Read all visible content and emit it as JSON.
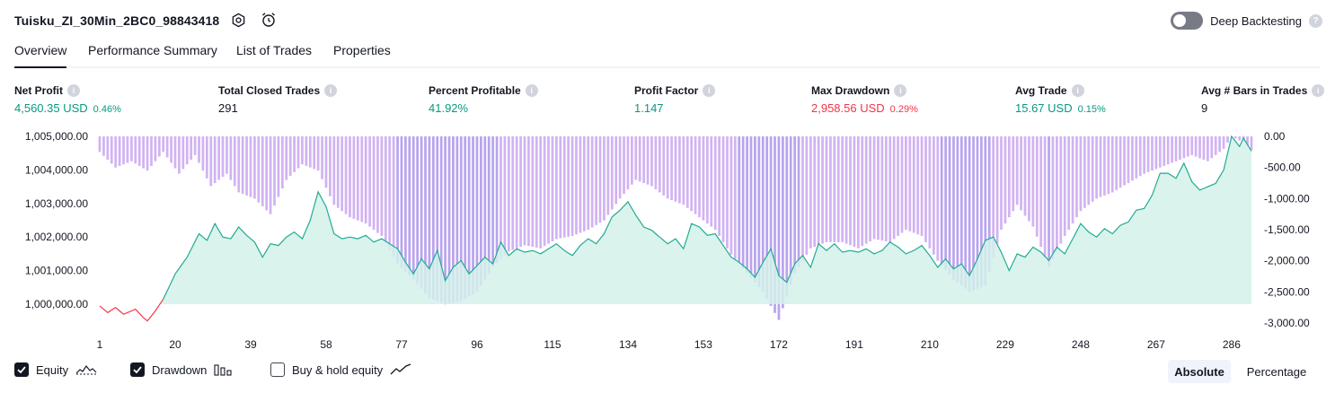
{
  "header": {
    "title": "Tuisku_ZI_30Min_2BC0_98843418",
    "settings_icon": "gear-icon",
    "alert_icon": "alarm-clock-icon",
    "deep_backtesting_label": "Deep Backtesting",
    "deep_backtesting_enabled": false,
    "help_icon": "question-icon"
  },
  "tabs": [
    {
      "label": "Overview",
      "active": true
    },
    {
      "label": "Performance Summary",
      "active": false
    },
    {
      "label": "List of Trades",
      "active": false
    },
    {
      "label": "Properties",
      "active": false
    }
  ],
  "metrics": [
    {
      "label": "Net Profit",
      "value": "4,560.35 USD",
      "pct": "0.46%",
      "tone": "pos"
    },
    {
      "label": "Total Closed Trades",
      "value": "291",
      "pct": "",
      "tone": "neutral"
    },
    {
      "label": "Percent Profitable",
      "value": "41.92%",
      "pct": "",
      "tone": "pos"
    },
    {
      "label": "Profit Factor",
      "value": "1.147",
      "pct": "",
      "tone": "pos"
    },
    {
      "label": "Max Drawdown",
      "value": "2,958.56 USD",
      "pct": "0.29%",
      "tone": "neg"
    },
    {
      "label": "Avg Trade",
      "value": "15.67 USD",
      "pct": "0.15%",
      "tone": "pos"
    },
    {
      "label": "Avg # Bars in Trades",
      "value": "9",
      "pct": "",
      "tone": "neutral"
    }
  ],
  "chart_data": {
    "type": "line",
    "left_axis_ticks": [
      "1,005,000.00",
      "1,004,000.00",
      "1,003,000.00",
      "1,002,000.00",
      "1,001,000.00",
      "1,000,000.00"
    ],
    "left_ylim": [
      1000000,
      1005000
    ],
    "right_axis_ticks": [
      "0.00",
      "-500.00",
      "-1,000.00",
      "-1,500.00",
      "-2,000.00",
      "-2,500.00",
      "-3,000.00"
    ],
    "right_ylim": [
      -3000,
      0
    ],
    "x_ticks": [
      "1",
      "20",
      "39",
      "58",
      "77",
      "96",
      "115",
      "134",
      "153",
      "172",
      "191",
      "210",
      "229",
      "248",
      "267",
      "286"
    ],
    "trade_count": 291,
    "equity_baseline": 1000000,
    "equity_anchors": [
      [
        1,
        999950
      ],
      [
        3,
        999750
      ],
      [
        5,
        999900
      ],
      [
        7,
        999700
      ],
      [
        10,
        999850
      ],
      [
        12,
        999600
      ],
      [
        13,
        999500
      ],
      [
        15,
        999800
      ],
      [
        17,
        1000150
      ],
      [
        20,
        1000900
      ],
      [
        23,
        1001400
      ],
      [
        26,
        1002100
      ],
      [
        28,
        1001900
      ],
      [
        30,
        1002400
      ],
      [
        32,
        1002000
      ],
      [
        34,
        1001950
      ],
      [
        36,
        1002300
      ],
      [
        38,
        1002050
      ],
      [
        40,
        1001850
      ],
      [
        42,
        1001400
      ],
      [
        44,
        1001800
      ],
      [
        46,
        1001750
      ],
      [
        48,
        1002000
      ],
      [
        50,
        1002150
      ],
      [
        52,
        1001950
      ],
      [
        54,
        1002500
      ],
      [
        56,
        1003350
      ],
      [
        58,
        1002900
      ],
      [
        60,
        1002100
      ],
      [
        62,
        1001950
      ],
      [
        64,
        1002000
      ],
      [
        66,
        1001950
      ],
      [
        68,
        1002050
      ],
      [
        70,
        1001850
      ],
      [
        72,
        1001950
      ],
      [
        74,
        1001800
      ],
      [
        76,
        1001650
      ],
      [
        78,
        1001250
      ],
      [
        80,
        1000900
      ],
      [
        82,
        1001350
      ],
      [
        84,
        1001050
      ],
      [
        86,
        1001600
      ],
      [
        88,
        1000700
      ],
      [
        90,
        1001100
      ],
      [
        92,
        1001300
      ],
      [
        94,
        1000900
      ],
      [
        96,
        1001150
      ],
      [
        98,
        1001400
      ],
      [
        100,
        1001200
      ],
      [
        102,
        1001850
      ],
      [
        104,
        1001450
      ],
      [
        106,
        1001650
      ],
      [
        108,
        1001550
      ],
      [
        110,
        1001600
      ],
      [
        112,
        1001500
      ],
      [
        114,
        1001650
      ],
      [
        116,
        1001800
      ],
      [
        118,
        1001600
      ],
      [
        120,
        1001450
      ],
      [
        122,
        1001750
      ],
      [
        124,
        1001950
      ],
      [
        126,
        1001800
      ],
      [
        128,
        1002100
      ],
      [
        130,
        1002600
      ],
      [
        132,
        1002800
      ],
      [
        134,
        1003050
      ],
      [
        136,
        1002650
      ],
      [
        138,
        1002300
      ],
      [
        140,
        1002200
      ],
      [
        142,
        1002000
      ],
      [
        144,
        1001800
      ],
      [
        146,
        1001950
      ],
      [
        148,
        1001650
      ],
      [
        150,
        1002400
      ],
      [
        152,
        1002300
      ],
      [
        154,
        1002050
      ],
      [
        156,
        1002100
      ],
      [
        158,
        1001750
      ],
      [
        160,
        1001400
      ],
      [
        162,
        1001250
      ],
      [
        164,
        1001050
      ],
      [
        166,
        1000800
      ],
      [
        168,
        1001250
      ],
      [
        170,
        1001650
      ],
      [
        172,
        1000850
      ],
      [
        174,
        1000650
      ],
      [
        176,
        1001200
      ],
      [
        178,
        1001450
      ],
      [
        180,
        1001100
      ],
      [
        182,
        1001800
      ],
      [
        184,
        1001600
      ],
      [
        186,
        1001800
      ],
      [
        188,
        1001550
      ],
      [
        190,
        1001600
      ],
      [
        192,
        1001550
      ],
      [
        194,
        1001650
      ],
      [
        196,
        1001500
      ],
      [
        198,
        1001600
      ],
      [
        200,
        1001850
      ],
      [
        202,
        1001700
      ],
      [
        204,
        1001500
      ],
      [
        206,
        1001600
      ],
      [
        208,
        1001750
      ],
      [
        210,
        1001450
      ],
      [
        212,
        1001100
      ],
      [
        214,
        1001350
      ],
      [
        216,
        1001050
      ],
      [
        218,
        1001200
      ],
      [
        220,
        1000850
      ],
      [
        222,
        1001350
      ],
      [
        224,
        1001900
      ],
      [
        226,
        1002000
      ],
      [
        228,
        1001550
      ],
      [
        230,
        1001000
      ],
      [
        232,
        1001500
      ],
      [
        234,
        1001400
      ],
      [
        236,
        1001700
      ],
      [
        238,
        1001550
      ],
      [
        240,
        1001300
      ],
      [
        242,
        1001700
      ],
      [
        244,
        1001500
      ],
      [
        246,
        1001950
      ],
      [
        248,
        1002400
      ],
      [
        250,
        1002150
      ],
      [
        252,
        1002000
      ],
      [
        254,
        1002250
      ],
      [
        256,
        1002100
      ],
      [
        258,
        1002350
      ],
      [
        260,
        1002450
      ],
      [
        262,
        1002800
      ],
      [
        264,
        1002850
      ],
      [
        266,
        1003250
      ],
      [
        268,
        1003900
      ],
      [
        270,
        1003900
      ],
      [
        272,
        1003750
      ],
      [
        274,
        1004200
      ],
      [
        276,
        1003650
      ],
      [
        278,
        1003400
      ],
      [
        280,
        1003500
      ],
      [
        282,
        1003600
      ],
      [
        284,
        1004000
      ],
      [
        286,
        1005000
      ],
      [
        288,
        1004700
      ],
      [
        289,
        1004950
      ],
      [
        291,
        1004560
      ]
    ],
    "drawdown_anchors": [
      [
        1,
        -250
      ],
      [
        5,
        -500
      ],
      [
        9,
        -400
      ],
      [
        13,
        -550
      ],
      [
        17,
        -250
      ],
      [
        21,
        -600
      ],
      [
        25,
        -300
      ],
      [
        29,
        -800
      ],
      [
        33,
        -600
      ],
      [
        36,
        -900
      ],
      [
        40,
        -1000
      ],
      [
        44,
        -1250
      ],
      [
        48,
        -700
      ],
      [
        52,
        -450
      ],
      [
        56,
        -550
      ],
      [
        60,
        -1100
      ],
      [
        64,
        -1300
      ],
      [
        68,
        -1400
      ],
      [
        72,
        -1600
      ],
      [
        76,
        -2050
      ],
      [
        80,
        -2300
      ],
      [
        84,
        -2600
      ],
      [
        88,
        -2700
      ],
      [
        92,
        -2650
      ],
      [
        96,
        -2500
      ],
      [
        100,
        -2100
      ],
      [
        104,
        -1850
      ],
      [
        108,
        -1750
      ],
      [
        112,
        -1800
      ],
      [
        116,
        -1650
      ],
      [
        120,
        -1600
      ],
      [
        124,
        -1500
      ],
      [
        128,
        -1350
      ],
      [
        132,
        -1000
      ],
      [
        136,
        -700
      ],
      [
        140,
        -800
      ],
      [
        144,
        -1000
      ],
      [
        148,
        -1100
      ],
      [
        152,
        -1300
      ],
      [
        156,
        -1500
      ],
      [
        160,
        -1900
      ],
      [
        164,
        -2200
      ],
      [
        168,
        -2500
      ],
      [
        172,
        -2950
      ],
      [
        176,
        -2200
      ],
      [
        180,
        -1800
      ],
      [
        184,
        -1700
      ],
      [
        188,
        -1700
      ],
      [
        192,
        -1800
      ],
      [
        196,
        -1650
      ],
      [
        200,
        -1700
      ],
      [
        204,
        -1500
      ],
      [
        208,
        -1600
      ],
      [
        212,
        -2000
      ],
      [
        216,
        -2300
      ],
      [
        220,
        -2500
      ],
      [
        224,
        -2400
      ],
      [
        228,
        -1500
      ],
      [
        232,
        -1100
      ],
      [
        236,
        -1450
      ],
      [
        240,
        -2100
      ],
      [
        244,
        -1600
      ],
      [
        248,
        -1200
      ],
      [
        252,
        -1000
      ],
      [
        256,
        -900
      ],
      [
        260,
        -750
      ],
      [
        264,
        -600
      ],
      [
        268,
        -500
      ],
      [
        272,
        -400
      ],
      [
        276,
        -300
      ],
      [
        280,
        -400
      ],
      [
        284,
        -200
      ],
      [
        286,
        0
      ],
      [
        289,
        -100
      ],
      [
        291,
        -220
      ]
    ]
  },
  "legend": {
    "equity_label": "Equity",
    "equity_checked": true,
    "equity_icon": "equity-line-icon",
    "drawdown_label": "Drawdown",
    "drawdown_checked": true,
    "drawdown_icon": "bars-icon",
    "buyhold_label": "Buy & hold equity",
    "buyhold_checked": false,
    "buyhold_icon": "trend-line-icon"
  },
  "scale_toggle": {
    "absolute_label": "Absolute",
    "percentage_label": "Percentage",
    "active": "absolute"
  },
  "colors": {
    "equity_line": "#22ab94",
    "equity_fill": "#d4f1ea",
    "loss_line": "#f23645",
    "drawdown_bar": "#d1b3f2",
    "drawdown_bar_dark": "#b9a4ee",
    "text": "#131722",
    "positive": "#089981",
    "negative": "#f23645"
  }
}
